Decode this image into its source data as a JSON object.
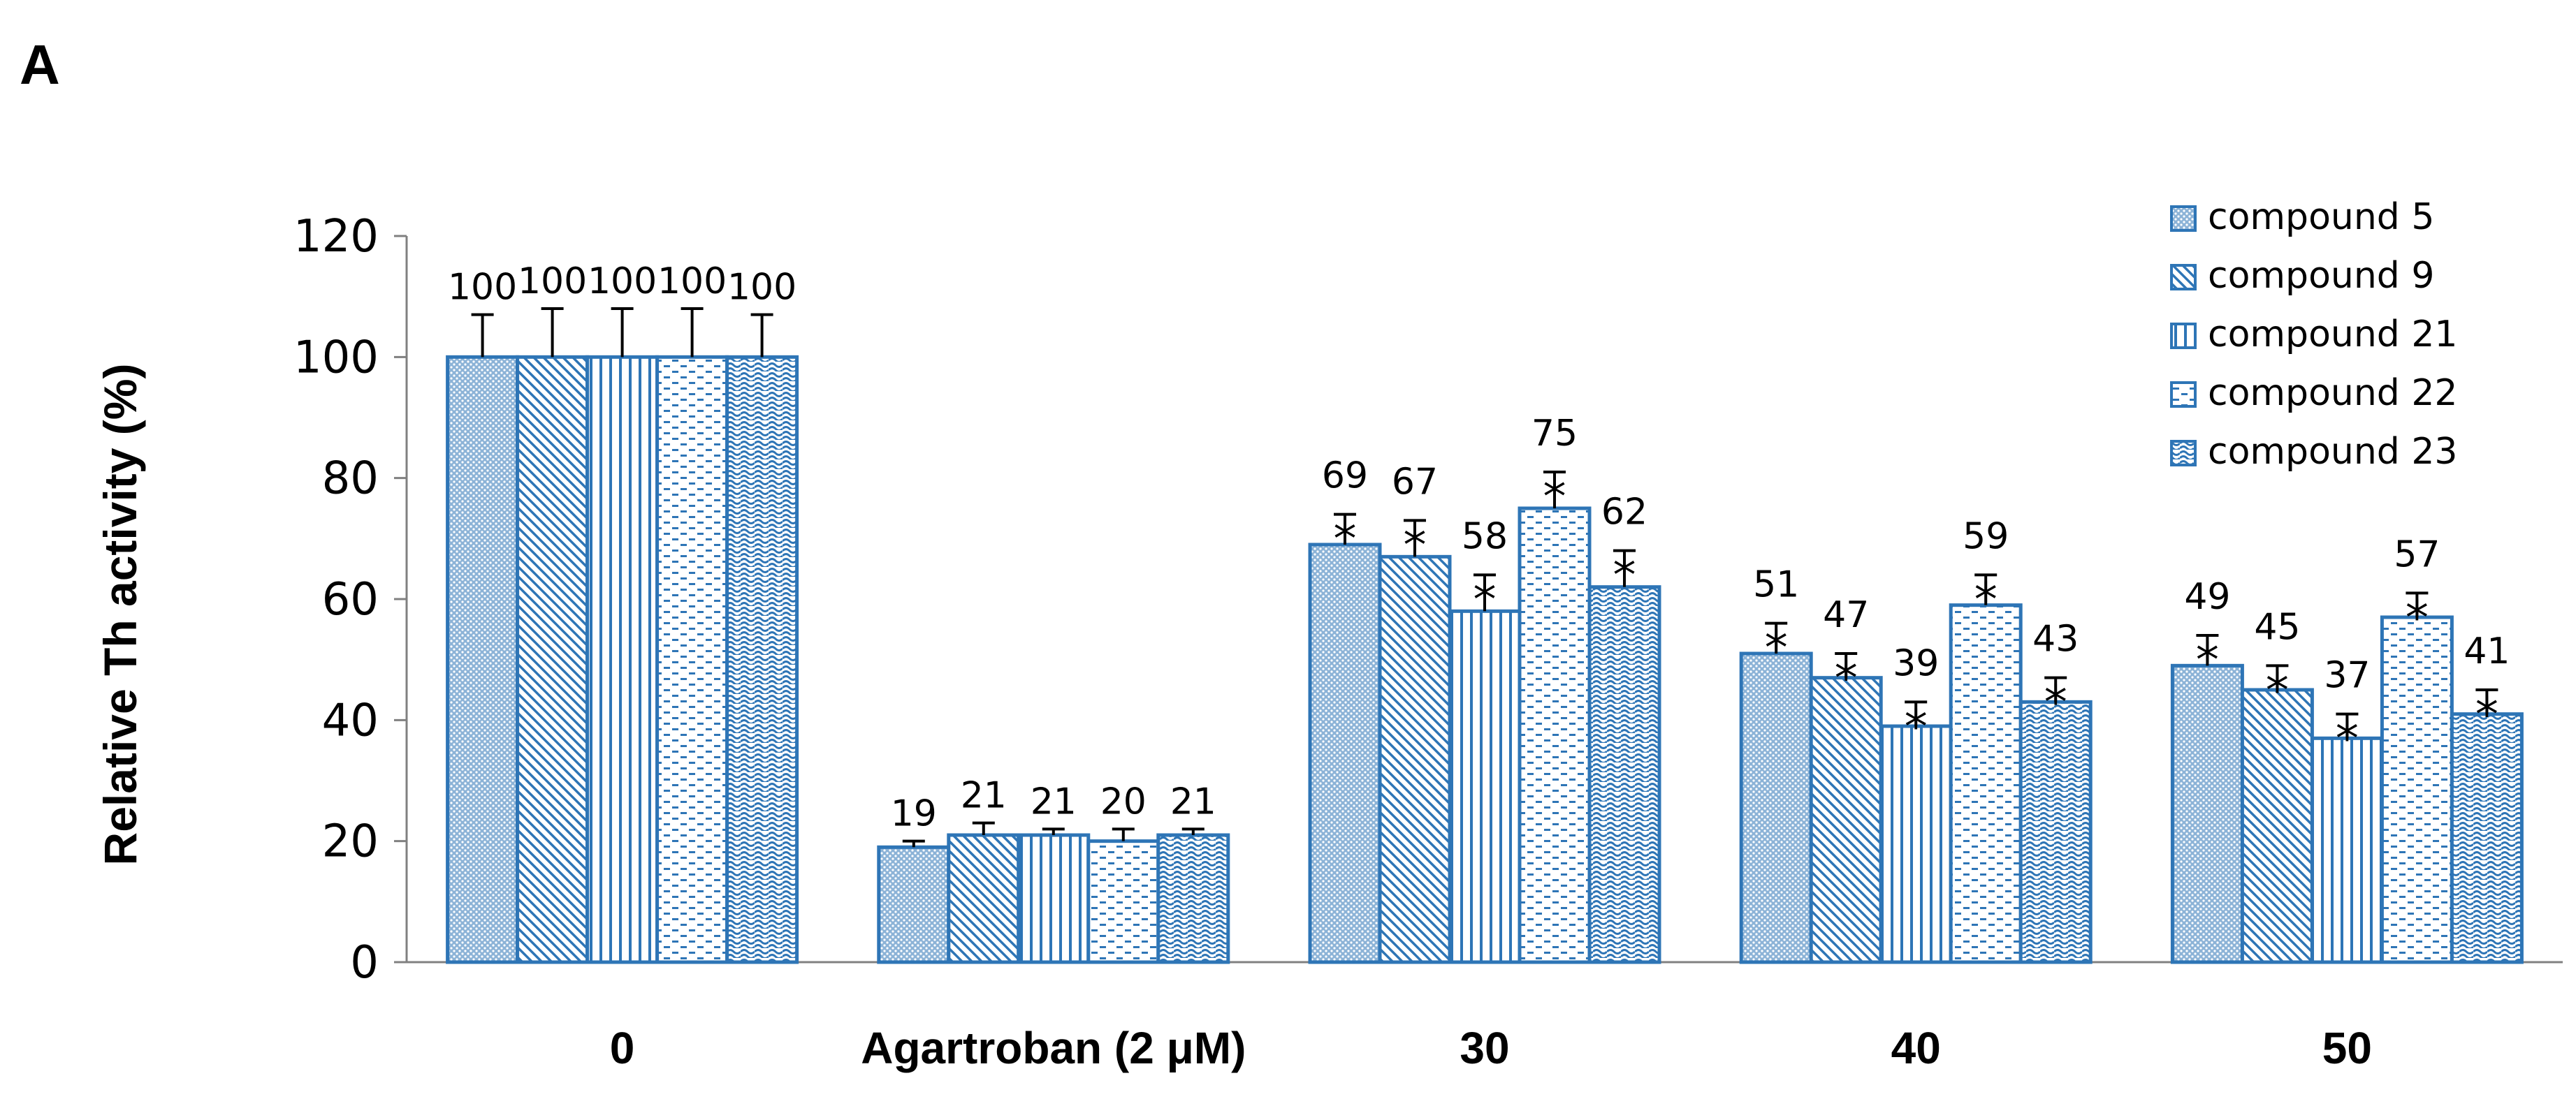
{
  "panel_label": "A",
  "chart_data": {
    "type": "bar",
    "title": "",
    "xlabel": "",
    "ylabel": "Relative Th activity (%)",
    "ylim": [
      0,
      120
    ],
    "yticks": [
      0,
      20,
      40,
      60,
      80,
      100,
      120
    ],
    "grid": false,
    "legend_position": "top-right",
    "categories": [
      "0",
      "Agartroban (2 μM)",
      "30",
      "40",
      "50"
    ],
    "significance_marker": "*",
    "series": [
      {
        "name": "compound 5",
        "pattern": "dense-dots",
        "values": [
          100,
          19,
          69,
          51,
          49
        ],
        "errors": [
          7,
          1,
          5,
          5,
          5
        ],
        "labels": [
          "100",
          "19",
          "69",
          "51",
          "49"
        ],
        "significant": [
          false,
          false,
          true,
          true,
          true
        ]
      },
      {
        "name": "compound 9",
        "pattern": "diagonal",
        "values": [
          100,
          21,
          67,
          47,
          45
        ],
        "errors": [
          8,
          2,
          6,
          4,
          4
        ],
        "labels": [
          "100",
          "21",
          "67",
          "47",
          "45"
        ],
        "significant": [
          false,
          false,
          true,
          true,
          true
        ]
      },
      {
        "name": "compound 21",
        "pattern": "vertical",
        "values": [
          100,
          21,
          58,
          39,
          37
        ],
        "errors": [
          8,
          1,
          6,
          4,
          4
        ],
        "labels": [
          "100",
          "21",
          "58",
          "39",
          "37"
        ],
        "significant": [
          false,
          false,
          true,
          true,
          true
        ]
      },
      {
        "name": "compound 22",
        "pattern": "dashes",
        "values": [
          100,
          20,
          75,
          59,
          57
        ],
        "errors": [
          8,
          2,
          6,
          5,
          4
        ],
        "labels": [
          "100",
          "20",
          "75",
          "59",
          "57"
        ],
        "significant": [
          false,
          false,
          true,
          true,
          true
        ]
      },
      {
        "name": "compound 23",
        "pattern": "waves",
        "values": [
          100,
          21,
          62,
          43,
          41
        ],
        "errors": [
          7,
          1,
          6,
          4,
          4
        ],
        "labels": [
          "100",
          "21",
          "62",
          "43",
          "41"
        ],
        "significant": [
          false,
          false,
          true,
          true,
          true
        ]
      }
    ],
    "colors": {
      "bar_outline": "#2e75b6",
      "bar_pattern": "#2e75b6",
      "axis": "#808080",
      "error_bar": "#000000"
    }
  }
}
